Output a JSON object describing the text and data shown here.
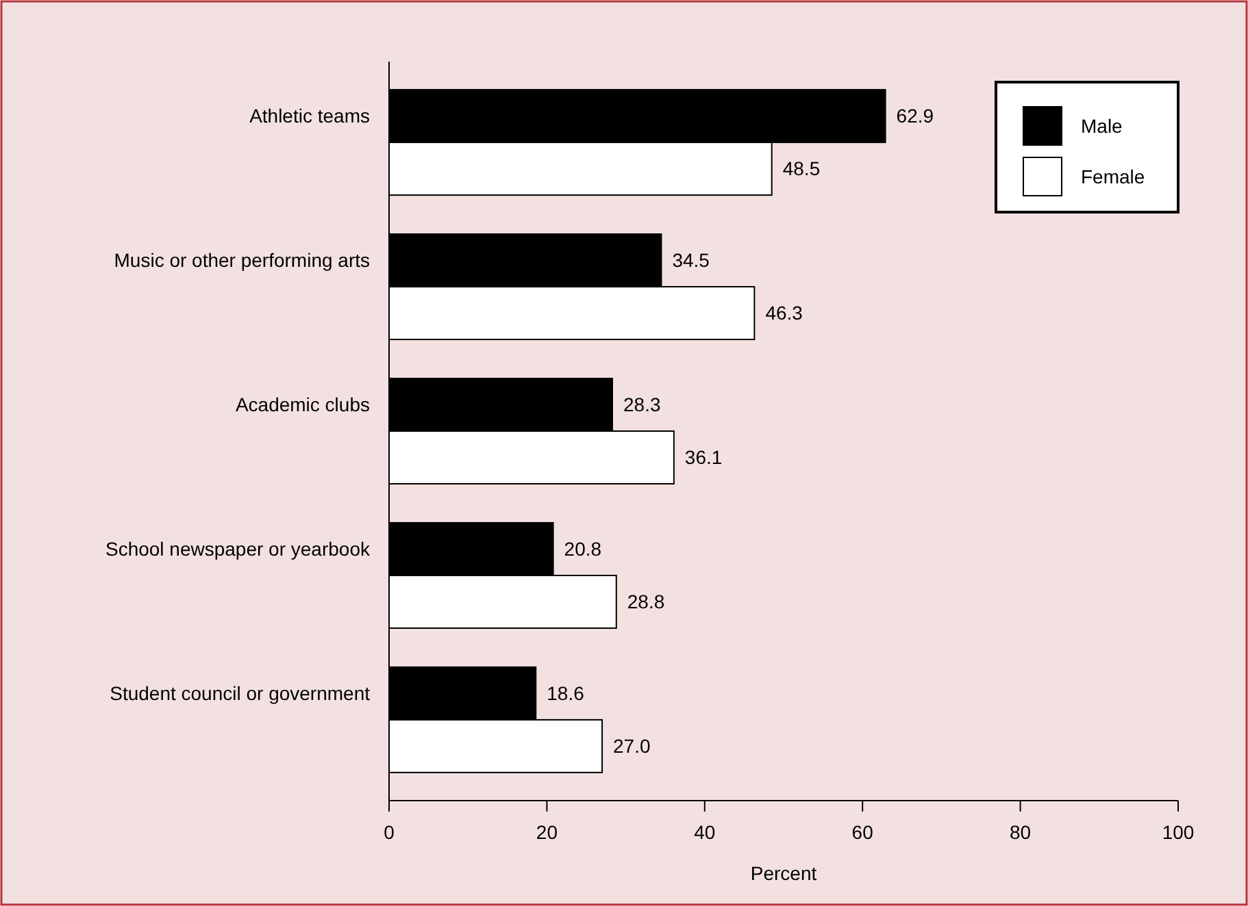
{
  "chart_data": {
    "type": "bar",
    "orientation": "horizontal",
    "xlabel": "Percent",
    "categories": [
      "Athletic teams",
      "Music or other performing arts",
      "Academic clubs",
      "School newspaper or yearbook",
      "Student council or government"
    ],
    "series": [
      {
        "name": "Male",
        "color": "#000000",
        "values": [
          62.9,
          34.5,
          28.3,
          20.8,
          18.6
        ],
        "value_labels": [
          "62.9",
          "34.5",
          "28.3",
          "20.8",
          "18.6"
        ]
      },
      {
        "name": "Female",
        "color": "#ffffff",
        "values": [
          48.5,
          46.3,
          36.1,
          28.8,
          27.0
        ],
        "value_labels": [
          "48.5",
          "46.3",
          "36.1",
          "28.8",
          "27.0"
        ]
      }
    ],
    "xlim": [
      0,
      100
    ],
    "xticks": [
      0,
      20,
      40,
      60,
      80,
      100
    ],
    "legend": "top right",
    "grid": false
  }
}
